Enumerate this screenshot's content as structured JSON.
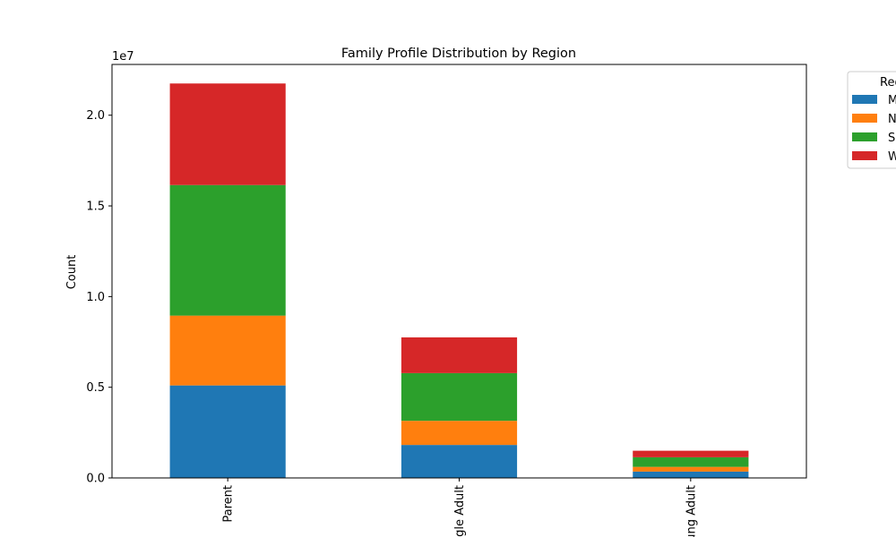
{
  "chart_data": {
    "type": "bar",
    "stacked": true,
    "title": "Family Profile Distribution by Region",
    "xlabel": "",
    "ylabel": "Count",
    "y_offset_label": "1e7",
    "categories": [
      "Parent",
      "Single Adult",
      "Young Adult"
    ],
    "series": [
      {
        "name": "Midwest",
        "color": "#1f77b4",
        "values": [
          5100000,
          1820000,
          350000
        ]
      },
      {
        "name": "Northeast",
        "color": "#ff7f0e",
        "values": [
          3850000,
          1330000,
          260000
        ]
      },
      {
        "name": "South",
        "color": "#2ca02c",
        "values": [
          7200000,
          2630000,
          530000
        ]
      },
      {
        "name": "West",
        "color": "#d62728",
        "values": [
          5600000,
          1970000,
          360000
        ]
      }
    ],
    "ylim": [
      0,
      22800000
    ],
    "yticks": [
      0,
      5000000,
      10000000,
      15000000,
      20000000
    ],
    "ytick_labels": [
      "0.0",
      "0.5",
      "1.0",
      "1.5",
      "2.0"
    ],
    "grid": false,
    "legend": {
      "title": "Region",
      "placement": "outside-top-right"
    }
  }
}
